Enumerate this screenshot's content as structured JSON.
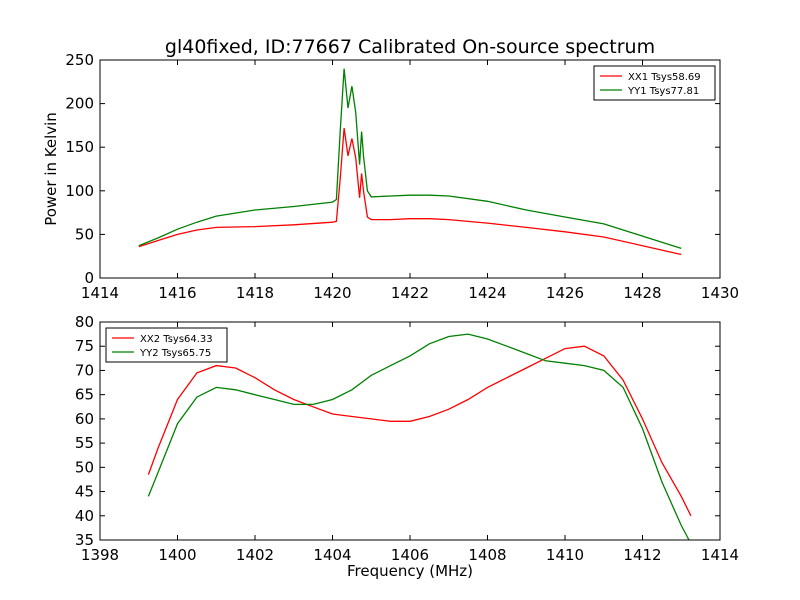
{
  "figure": {
    "title": "gl40fixed, ID:77667 Calibrated On-source spectrum"
  },
  "colors": {
    "red": "#ff0000",
    "green": "#008000"
  },
  "chart_data": [
    {
      "type": "line",
      "title": "gl40fixed, ID:77667 Calibrated On-source spectrum",
      "xlabel": "",
      "ylabel": "Power in Kelvin",
      "xlim": [
        1414,
        1430
      ],
      "ylim": [
        0,
        250
      ],
      "xticks": [
        1414,
        1416,
        1418,
        1420,
        1422,
        1424,
        1426,
        1428,
        1430
      ],
      "yticks": [
        0,
        50,
        100,
        150,
        200,
        250
      ],
      "legend_position": "top-right",
      "grid": false,
      "series": [
        {
          "name": "XX1 Tsys58.69",
          "color": "#ff0000",
          "x": [
            1415,
            1415.5,
            1416,
            1416.5,
            1417,
            1418,
            1419,
            1420,
            1420.1,
            1420.2,
            1420.3,
            1420.4,
            1420.5,
            1420.6,
            1420.7,
            1420.75,
            1420.8,
            1420.9,
            1421,
            1421.5,
            1422,
            1422.5,
            1423,
            1424,
            1425,
            1426,
            1427,
            1428,
            1429
          ],
          "y": [
            36,
            43,
            50,
            55,
            58,
            59,
            61,
            64,
            65,
            115,
            172,
            140,
            160,
            138,
            92,
            120,
            100,
            70,
            67,
            67,
            68,
            68,
            67,
            63,
            58,
            53,
            47,
            37,
            27
          ]
        },
        {
          "name": "YY1 Tsys77.81",
          "color": "#008000",
          "x": [
            1415,
            1415.5,
            1416,
            1416.5,
            1417,
            1418,
            1419,
            1420,
            1420.1,
            1420.2,
            1420.3,
            1420.4,
            1420.5,
            1420.6,
            1420.7,
            1420.75,
            1420.8,
            1420.9,
            1421,
            1421.5,
            1422,
            1422.5,
            1423,
            1424,
            1425,
            1426,
            1427,
            1428,
            1429
          ],
          "y": [
            37,
            46,
            56,
            64,
            71,
            78,
            82,
            87,
            90,
            170,
            240,
            195,
            220,
            190,
            130,
            168,
            140,
            100,
            93,
            94,
            95,
            95,
            94,
            88,
            78,
            70,
            62,
            48,
            34
          ]
        }
      ]
    },
    {
      "type": "line",
      "title": "",
      "xlabel": "Frequency (MHz)",
      "ylabel": "",
      "xlim": [
        1398,
        1414
      ],
      "ylim": [
        35,
        80
      ],
      "xticks": [
        1398,
        1400,
        1402,
        1404,
        1406,
        1408,
        1410,
        1412,
        1414
      ],
      "yticks": [
        35,
        40,
        45,
        50,
        55,
        60,
        65,
        70,
        75,
        80
      ],
      "legend_position": "top-left",
      "grid": false,
      "series": [
        {
          "name": "XX2 Tsys64.33",
          "color": "#ff0000",
          "x": [
            1399.25,
            1399.5,
            1400,
            1400.5,
            1401,
            1401.5,
            1402,
            1402.5,
            1403,
            1403.5,
            1404,
            1404.5,
            1405,
            1405.5,
            1406,
            1406.5,
            1407,
            1407.5,
            1408,
            1408.5,
            1409,
            1409.5,
            1410,
            1410.5,
            1411,
            1411.5,
            1412,
            1412.5,
            1413,
            1413.25
          ],
          "y": [
            48.5,
            54,
            64,
            69.5,
            71,
            70.5,
            68.5,
            66,
            64,
            62.5,
            61,
            60.5,
            60,
            59.5,
            59.5,
            60.5,
            62,
            64,
            66.5,
            68.5,
            70.5,
            72.5,
            74.5,
            75,
            73,
            68,
            60,
            51,
            44,
            40
          ]
        },
        {
          "name": "YY2 Tsys65.75",
          "color": "#008000",
          "x": [
            1399.25,
            1399.5,
            1400,
            1400.5,
            1401,
            1401.5,
            1402,
            1402.5,
            1403,
            1403.5,
            1404,
            1404.5,
            1405,
            1405.5,
            1406,
            1406.5,
            1407,
            1407.5,
            1408,
            1408.5,
            1409,
            1409.5,
            1410,
            1410.5,
            1411,
            1411.5,
            1412,
            1412.5,
            1413,
            1413.2
          ],
          "y": [
            44,
            49,
            59,
            64.5,
            66.5,
            66,
            65,
            64,
            63,
            63,
            64,
            66,
            69,
            71,
            73,
            75.5,
            77,
            77.5,
            76.5,
            75,
            73.5,
            72,
            71.5,
            71,
            70,
            66.5,
            58,
            47,
            38,
            35
          ]
        }
      ]
    }
  ]
}
